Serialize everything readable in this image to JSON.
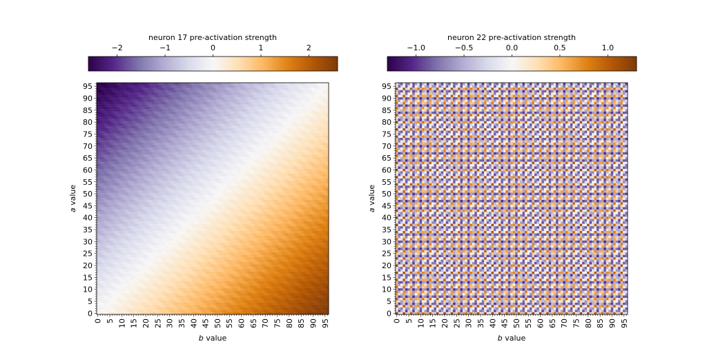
{
  "chart_data": [
    {
      "type": "heatmap",
      "colorbar_label": "neuron 17 pre-activation strength",
      "colorbar_ticks": [
        -2,
        -1,
        0,
        1,
        2
      ],
      "colorbar_tick_labels": [
        "−2",
        "−1",
        "0",
        "1",
        "2"
      ],
      "vmin": -2.6,
      "vmax": 2.6,
      "colormap": "PuOr_r",
      "xlabel_var": "b",
      "xlabel_rest": " value",
      "ylabel_var": "a",
      "ylabel_rest": " value",
      "xlim": [
        0,
        96
      ],
      "ylim": [
        0,
        96
      ],
      "xticks": [
        0,
        5,
        10,
        15,
        20,
        25,
        30,
        35,
        40,
        45,
        50,
        55,
        60,
        65,
        70,
        75,
        80,
        85,
        90,
        95
      ],
      "yticks": [
        0,
        5,
        10,
        15,
        20,
        25,
        30,
        35,
        40,
        45,
        50,
        55,
        60,
        65,
        70,
        75,
        80,
        85,
        90,
        95
      ],
      "pattern": "smooth gradient: value increases with b minus a; dark purple (about -2.5) at a=96,b=0, dark orange (about +2.5) at a=0,b=96, near zero along diagonal"
    },
    {
      "type": "heatmap",
      "colorbar_label": "neuron 22 pre-activation strength",
      "colorbar_ticks": [
        -1.0,
        -0.5,
        0.0,
        0.5,
        1.0
      ],
      "colorbar_tick_labels": [
        "−1.0",
        "−0.5",
        "0.0",
        "0.5",
        "1.0"
      ],
      "vmin": -1.3,
      "vmax": 1.3,
      "colormap": "PuOr_r",
      "xlabel_var": "b",
      "xlabel_rest": " value",
      "ylabel_var": "a",
      "ylabel_rest": " value",
      "xlim": [
        0,
        96
      ],
      "ylim": [
        0,
        96
      ],
      "xticks": [
        0,
        5,
        10,
        15,
        20,
        25,
        30,
        35,
        40,
        45,
        50,
        55,
        60,
        65,
        70,
        75,
        80,
        85,
        90,
        95
      ],
      "yticks": [
        0,
        5,
        10,
        15,
        20,
        25,
        30,
        35,
        40,
        45,
        50,
        55,
        60,
        65,
        70,
        75,
        80,
        85,
        90,
        95
      ],
      "pattern": "periodic checkerboard: value roughly cos(2*pi*k*a/97)+cos(2*pi*k*b/97) style interference, mostly purple with light orange stripes"
    }
  ],
  "colors": {
    "purple_dark": "#2d004b",
    "purple_mid": "#8073ac",
    "neutral": "#f7f7f7",
    "orange_mid": "#f1a340",
    "orange_dark": "#7f3b08"
  }
}
